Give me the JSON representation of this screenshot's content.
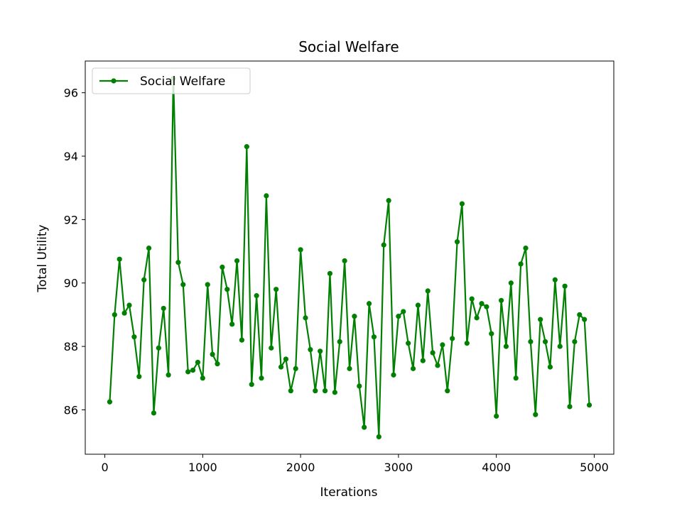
{
  "chart_data": {
    "type": "line",
    "title": "Social Welfare",
    "xlabel": "Iterations",
    "ylabel": "Total Utility",
    "xlim": [
      -200,
      5200
    ],
    "ylim": [
      84.6,
      97.0
    ],
    "xticks": [
      0,
      1000,
      2000,
      3000,
      4000,
      5000
    ],
    "yticks": [
      86,
      88,
      90,
      92,
      94,
      96
    ],
    "grid": false,
    "legend_position": "top-left",
    "color": "#008000",
    "marker": "circle",
    "series": [
      {
        "name": "Social Welfare",
        "x": [
          50,
          100,
          150,
          200,
          250,
          300,
          350,
          400,
          450,
          500,
          550,
          600,
          650,
          700,
          750,
          800,
          850,
          900,
          950,
          1000,
          1050,
          1100,
          1150,
          1200,
          1250,
          1300,
          1350,
          1400,
          1450,
          1500,
          1550,
          1600,
          1650,
          1700,
          1750,
          1800,
          1850,
          1900,
          1950,
          2000,
          2050,
          2100,
          2150,
          2200,
          2250,
          2300,
          2350,
          2400,
          2450,
          2500,
          2550,
          2600,
          2650,
          2700,
          2750,
          2800,
          2850,
          2900,
          2950,
          3000,
          3050,
          3100,
          3150,
          3200,
          3250,
          3300,
          3350,
          3400,
          3450,
          3500,
          3550,
          3600,
          3650,
          3700,
          3750,
          3800,
          3850,
          3900,
          3950,
          4000,
          4050,
          4100,
          4150,
          4200,
          4250,
          4300,
          4350,
          4400,
          4450,
          4500,
          4550,
          4600,
          4650,
          4700,
          4750,
          4800,
          4850,
          4900,
          4950
        ],
        "y": [
          86.25,
          89.0,
          90.75,
          89.05,
          89.3,
          88.3,
          87.05,
          90.1,
          91.1,
          85.9,
          87.95,
          89.2,
          87.1,
          96.45,
          90.65,
          89.95,
          87.2,
          87.25,
          87.5,
          87.0,
          89.95,
          87.75,
          87.45,
          90.5,
          89.8,
          88.7,
          90.7,
          88.2,
          94.3,
          86.8,
          89.6,
          87.0,
          92.75,
          87.95,
          89.8,
          87.35,
          87.6,
          86.6,
          87.3,
          91.05,
          88.9,
          87.9,
          86.6,
          87.85,
          86.6,
          90.3,
          86.55,
          88.15,
          90.7,
          87.3,
          88.95,
          86.75,
          85.45,
          89.35,
          88.3,
          85.15,
          91.2,
          92.6,
          87.1,
          88.95,
          89.1,
          88.1,
          87.3,
          89.3,
          87.55,
          89.75,
          87.8,
          87.4,
          88.05,
          86.6,
          88.25,
          91.3,
          92.5,
          88.1,
          89.5,
          88.9,
          89.35,
          89.25,
          88.4,
          85.8,
          89.45,
          88.0,
          90.0,
          87.0,
          90.6,
          91.1,
          88.15,
          85.85,
          88.85,
          88.15,
          87.35,
          90.1,
          88.0,
          89.9,
          86.1,
          88.15,
          89.0,
          88.85,
          86.15
        ]
      }
    ]
  }
}
